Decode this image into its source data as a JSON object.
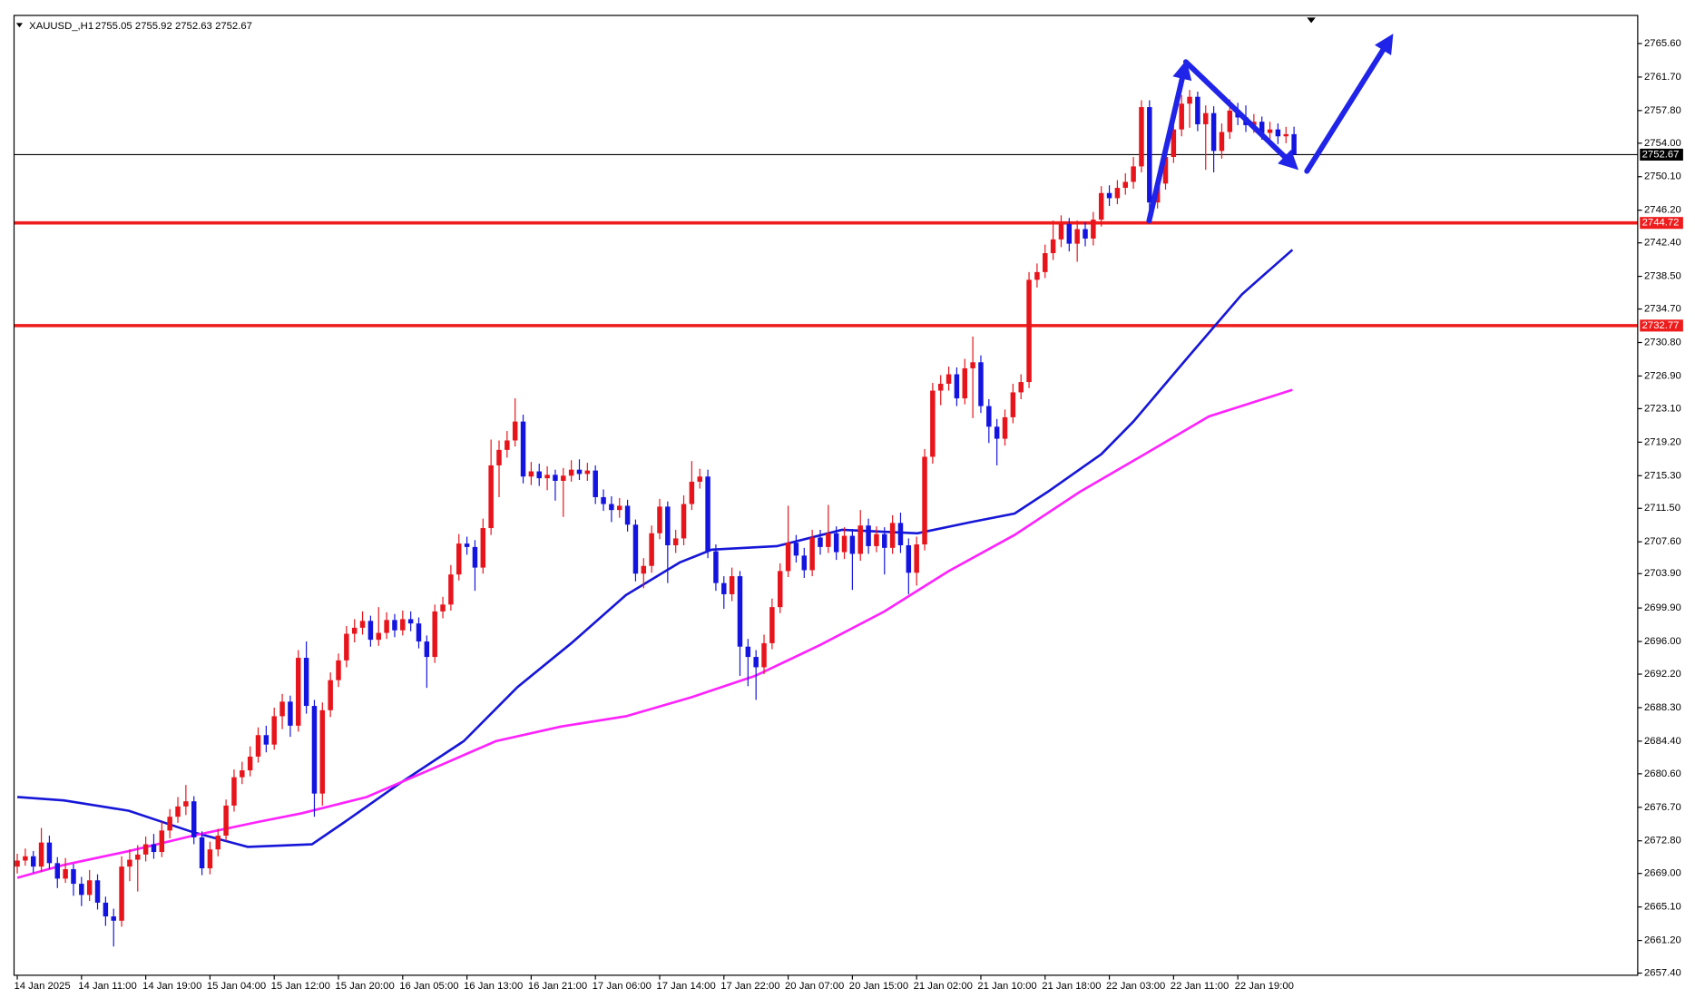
{
  "chart_data": {
    "type": "candlestick",
    "title": "XAUUSD_,H1",
    "color_up": "#e8141c",
    "color_down": "#1414e0",
    "xlim": [
      -0.4,
      201.8
    ],
    "xticks": [
      {
        "value": 0,
        "label": "14 Jan 2025"
      },
      {
        "value": 8,
        "label": "14 Jan 11:00"
      },
      {
        "value": 16,
        "label": "14 Jan 19:00"
      },
      {
        "value": 24,
        "label": "15 Jan 04:00"
      },
      {
        "value": 32,
        "label": "15 Jan 12:00"
      },
      {
        "value": 40,
        "label": "15 Jan 20:00"
      },
      {
        "value": 48,
        "label": "16 Jan 05:00"
      },
      {
        "value": 56,
        "label": "16 Jan 13:00"
      },
      {
        "value": 64,
        "label": "16 Jan 21:00"
      },
      {
        "value": 72,
        "label": "17 Jan 06:00"
      },
      {
        "value": 80,
        "label": "17 Jan 14:00"
      },
      {
        "value": 88,
        "label": "17 Jan 22:00"
      },
      {
        "value": 96,
        "label": "20 Jan 07:00"
      },
      {
        "value": 104,
        "label": "20 Jan 15:00"
      },
      {
        "value": 112,
        "label": "21 Jan 02:00"
      },
      {
        "value": 120,
        "label": "21 Jan 10:00"
      },
      {
        "value": 128,
        "label": "21 Jan 18:00"
      },
      {
        "value": 136,
        "label": "22 Jan 03:00"
      },
      {
        "value": 144,
        "label": "22 Jan 11:00"
      },
      {
        "value": 152,
        "label": "22 Jan 19:00"
      }
    ],
    "ylim": [
      2657.15,
      2768.87
    ],
    "yticks": [
      {
        "value": 2765.6,
        "label": "2765.60"
      },
      {
        "value": 2761.7,
        "label": "2761.70"
      },
      {
        "value": 2757.8,
        "label": "2757.80"
      },
      {
        "value": 2754,
        "label": "2754.00"
      },
      {
        "value": 2750.1,
        "label": "2750.10"
      },
      {
        "value": 2746.2,
        "label": "2746.20"
      },
      {
        "value": 2742.4,
        "label": "2742.40"
      },
      {
        "value": 2738.5,
        "label": "2738.50"
      },
      {
        "value": 2734.7,
        "label": "2734.70"
      },
      {
        "value": 2730.8,
        "label": "2730.80"
      },
      {
        "value": 2726.9,
        "label": "2726.90"
      },
      {
        "value": 2723.1,
        "label": "2723.10"
      },
      {
        "value": 2719.2,
        "label": "2719.20"
      },
      {
        "value": 2715.3,
        "label": "2715.30"
      },
      {
        "value": 2711.5,
        "label": "2711.50"
      },
      {
        "value": 2707.6,
        "label": "2707.60"
      },
      {
        "value": 2703.9,
        "label": "2703.90"
      },
      {
        "value": 2699.9,
        "label": "2699.90"
      },
      {
        "value": 2696,
        "label": "2696.00"
      },
      {
        "value": 2692.2,
        "label": "2692.20"
      },
      {
        "value": 2688.3,
        "label": "2688.30"
      },
      {
        "value": 2684.4,
        "label": "2684.40"
      },
      {
        "value": 2680.6,
        "label": "2680.60"
      },
      {
        "value": 2676.7,
        "label": "2676.70"
      },
      {
        "value": 2672.8,
        "label": "2672.80"
      },
      {
        "value": 2669,
        "label": "2669.00"
      },
      {
        "value": 2665.1,
        "label": "2665.10"
      },
      {
        "value": 2661.2,
        "label": "2661.20"
      },
      {
        "value": 2657.4,
        "label": "2657.40"
      }
    ],
    "grid": false,
    "candles": [
      [
        2669.8,
        2671.3,
        2669.0,
        2670.5
      ],
      [
        2670.5,
        2671.9,
        2669.9,
        2671.0
      ],
      [
        2671.0,
        2671.6,
        2669.1,
        2669.8
      ],
      [
        2669.8,
        2674.3,
        2669.2,
        2672.6
      ],
      [
        2672.6,
        2673.4,
        2669.5,
        2670.2
      ],
      [
        2670.2,
        2670.9,
        2667.3,
        2668.4
      ],
      [
        2668.4,
        2670.8,
        2667.9,
        2669.5
      ],
      [
        2669.5,
        2670.1,
        2666.4,
        2667.8
      ],
      [
        2667.8,
        2668.6,
        2665.2,
        2666.5
      ],
      [
        2666.5,
        2669.4,
        2665.8,
        2668.2
      ],
      [
        2668.2,
        2668.9,
        2664.8,
        2665.6
      ],
      [
        2665.6,
        2666.3,
        2662.9,
        2664.0
      ],
      [
        2664.0,
        2664.9,
        2660.5,
        2663.5
      ],
      [
        2663.5,
        2671.0,
        2662.8,
        2669.8
      ],
      [
        2669.8,
        2671.8,
        2668.1,
        2670.6
      ],
      [
        2670.6,
        2672.3,
        2666.9,
        2671.2
      ],
      [
        2671.2,
        2673.3,
        2670.4,
        2672.4
      ],
      [
        2672.4,
        2673.6,
        2670.7,
        2671.5
      ],
      [
        2671.5,
        2675.0,
        2670.9,
        2674.0
      ],
      [
        2674.0,
        2676.5,
        2673.1,
        2675.6
      ],
      [
        2675.6,
        2677.9,
        2674.9,
        2676.8
      ],
      [
        2676.8,
        2679.3,
        2675.8,
        2677.4
      ],
      [
        2677.4,
        2678.0,
        2672.4,
        2673.2
      ],
      [
        2673.2,
        2673.9,
        2668.8,
        2669.6
      ],
      [
        2669.6,
        2672.7,
        2668.9,
        2671.8
      ],
      [
        2671.8,
        2674.2,
        2671.0,
        2673.4
      ],
      [
        2673.4,
        2677.6,
        2672.8,
        2676.9
      ],
      [
        2676.9,
        2681.1,
        2676.2,
        2680.2
      ],
      [
        2680.2,
        2682.0,
        2679.4,
        2681.0
      ],
      [
        2681.0,
        2683.8,
        2680.3,
        2682.6
      ],
      [
        2682.6,
        2686.0,
        2681.9,
        2685.1
      ],
      [
        2685.1,
        2686.2,
        2683.1,
        2684.0
      ],
      [
        2684.0,
        2688.3,
        2683.4,
        2687.3
      ],
      [
        2687.3,
        2689.9,
        2685.8,
        2689.0
      ],
      [
        2689.0,
        2689.7,
        2684.9,
        2686.2
      ],
      [
        2686.2,
        2695.0,
        2685.5,
        2694.1
      ],
      [
        2694.1,
        2696.0,
        2687.6,
        2688.5
      ],
      [
        2688.5,
        2689.2,
        2675.6,
        2678.3
      ],
      [
        2678.3,
        2688.9,
        2676.9,
        2688.0
      ],
      [
        2688.0,
        2692.4,
        2687.2,
        2691.5
      ],
      [
        2691.5,
        2694.6,
        2690.7,
        2693.8
      ],
      [
        2693.8,
        2697.8,
        2693.0,
        2696.9
      ],
      [
        2696.9,
        2698.6,
        2695.9,
        2697.6
      ],
      [
        2697.6,
        2699.5,
        2696.8,
        2698.4
      ],
      [
        2698.4,
        2699.0,
        2695.4,
        2696.2
      ],
      [
        2696.2,
        2700.0,
        2695.5,
        2697.0
      ],
      [
        2697.0,
        2699.4,
        2696.3,
        2698.5
      ],
      [
        2698.5,
        2699.2,
        2696.5,
        2697.3
      ],
      [
        2697.3,
        2699.6,
        2696.7,
        2698.6
      ],
      [
        2698.6,
        2699.5,
        2697.2,
        2698.1
      ],
      [
        2698.1,
        2698.8,
        2695.2,
        2696.0
      ],
      [
        2696.0,
        2696.7,
        2690.6,
        2694.2
      ],
      [
        2694.2,
        2700.3,
        2693.5,
        2699.5
      ],
      [
        2699.5,
        2701.2,
        2698.7,
        2700.3
      ],
      [
        2700.3,
        2704.9,
        2699.6,
        2703.8
      ],
      [
        2703.8,
        2708.5,
        2703.1,
        2707.4
      ],
      [
        2707.4,
        2708.2,
        2706.1,
        2707.0
      ],
      [
        2707.0,
        2707.8,
        2701.9,
        2704.6
      ],
      [
        2704.6,
        2710.3,
        2703.9,
        2709.2
      ],
      [
        2709.2,
        2719.5,
        2708.4,
        2716.5
      ],
      [
        2716.5,
        2719.4,
        2712.8,
        2718.3
      ],
      [
        2718.3,
        2720.5,
        2717.4,
        2719.4
      ],
      [
        2719.4,
        2724.3,
        2718.7,
        2721.6
      ],
      [
        2721.6,
        2722.4,
        2714.4,
        2715.2
      ],
      [
        2715.2,
        2716.9,
        2714.2,
        2715.8
      ],
      [
        2715.8,
        2716.7,
        2714.1,
        2715.0
      ],
      [
        2715.0,
        2716.4,
        2713.6,
        2715.4
      ],
      [
        2715.4,
        2716.0,
        2712.4,
        2714.7
      ],
      [
        2714.7,
        2716.2,
        2710.5,
        2715.3
      ],
      [
        2715.3,
        2717.1,
        2714.6,
        2716.0
      ],
      [
        2716.0,
        2717.2,
        2714.8,
        2715.5
      ],
      [
        2715.5,
        2716.8,
        2714.7,
        2715.9
      ],
      [
        2715.9,
        2716.5,
        2712.0,
        2712.8
      ],
      [
        2712.8,
        2713.7,
        2711.2,
        2712.0
      ],
      [
        2712.0,
        2712.9,
        2709.9,
        2711.3
      ],
      [
        2711.3,
        2712.7,
        2710.4,
        2711.8
      ],
      [
        2711.8,
        2712.5,
        2708.8,
        2709.6
      ],
      [
        2709.6,
        2710.2,
        2703.0,
        2703.9
      ],
      [
        2703.9,
        2705.7,
        2702.2,
        2704.8
      ],
      [
        2704.8,
        2709.5,
        2704.0,
        2708.6
      ],
      [
        2708.6,
        2712.6,
        2707.9,
        2711.7
      ],
      [
        2711.7,
        2712.3,
        2702.8,
        2707.2
      ],
      [
        2707.2,
        2709.0,
        2706.3,
        2708.0
      ],
      [
        2708.0,
        2713.0,
        2707.2,
        2712.0
      ],
      [
        2712.0,
        2717.0,
        2711.3,
        2714.6
      ],
      [
        2714.6,
        2716.1,
        2713.8,
        2715.2
      ],
      [
        2715.2,
        2716.0,
        2705.7,
        2706.5
      ],
      [
        2706.5,
        2707.3,
        2701.9,
        2702.8
      ],
      [
        2702.8,
        2703.6,
        2699.8,
        2701.5
      ],
      [
        2701.5,
        2704.6,
        2700.7,
        2703.6
      ],
      [
        2703.6,
        2704.2,
        2692.0,
        2695.4
      ],
      [
        2695.4,
        2696.3,
        2690.8,
        2694.2
      ],
      [
        2694.2,
        2695.0,
        2689.2,
        2693.0
      ],
      [
        2693.0,
        2696.8,
        2692.2,
        2695.8
      ],
      [
        2695.8,
        2701.0,
        2695.1,
        2700.0
      ],
      [
        2700.0,
        2705.1,
        2699.3,
        2704.2
      ],
      [
        2704.2,
        2711.8,
        2703.5,
        2707.5
      ],
      [
        2707.5,
        2708.4,
        2705.2,
        2706.0
      ],
      [
        2706.0,
        2706.9,
        2703.4,
        2704.3
      ],
      [
        2704.3,
        2709.0,
        2703.6,
        2708.1
      ],
      [
        2708.1,
        2709.0,
        2706.1,
        2707.0
      ],
      [
        2707.0,
        2711.9,
        2706.3,
        2708.6
      ],
      [
        2708.6,
        2709.4,
        2705.5,
        2706.4
      ],
      [
        2706.4,
        2709.3,
        2705.6,
        2708.3
      ],
      [
        2708.3,
        2709.1,
        2702.0,
        2706.2
      ],
      [
        2706.2,
        2711.3,
        2705.4,
        2709.5
      ],
      [
        2709.5,
        2710.3,
        2706.2,
        2707.1
      ],
      [
        2707.1,
        2709.4,
        2706.4,
        2708.5
      ],
      [
        2708.5,
        2709.3,
        2703.8,
        2706.9
      ],
      [
        2706.9,
        2710.7,
        2706.2,
        2709.8
      ],
      [
        2709.8,
        2711.0,
        2706.3,
        2707.2
      ],
      [
        2707.2,
        2708.0,
        2701.5,
        2704.0
      ],
      [
        2704.0,
        2708.2,
        2702.5,
        2707.3
      ],
      [
        2707.3,
        2718.4,
        2706.6,
        2717.5
      ],
      [
        2717.5,
        2726.1,
        2716.7,
        2725.2
      ],
      [
        2725.2,
        2727.0,
        2723.5,
        2726.0
      ],
      [
        2726.0,
        2728.0,
        2725.2,
        2727.1
      ],
      [
        2727.1,
        2727.9,
        2723.4,
        2724.3
      ],
      [
        2724.3,
        2728.9,
        2723.6,
        2727.8
      ],
      [
        2727.8,
        2731.5,
        2722.0,
        2728.5
      ],
      [
        2728.5,
        2729.3,
        2722.6,
        2723.4
      ],
      [
        2723.4,
        2724.2,
        2719.1,
        2721.0
      ],
      [
        2721.0,
        2721.9,
        2716.5,
        2719.6
      ],
      [
        2719.6,
        2723.0,
        2718.8,
        2722.1
      ],
      [
        2722.1,
        2726.0,
        2721.4,
        2725.0
      ],
      [
        2725.0,
        2727.1,
        2724.2,
        2726.2
      ],
      [
        2726.2,
        2739.0,
        2725.5,
        2738.1
      ],
      [
        2738.1,
        2740.0,
        2737.2,
        2739.0
      ],
      [
        2739.0,
        2742.2,
        2738.3,
        2741.2
      ],
      [
        2741.2,
        2745.0,
        2740.4,
        2742.8
      ],
      [
        2742.8,
        2745.6,
        2741.9,
        2744.6
      ],
      [
        2744.6,
        2745.3,
        2741.4,
        2742.3
      ],
      [
        2742.3,
        2745.0,
        2740.2,
        2744.0
      ],
      [
        2744.0,
        2744.8,
        2742.0,
        2742.9
      ],
      [
        2742.9,
        2746.0,
        2742.1,
        2745.1
      ],
      [
        2745.1,
        2749.0,
        2744.3,
        2748.2
      ],
      [
        2748.2,
        2749.1,
        2746.7,
        2747.6
      ],
      [
        2747.6,
        2749.7,
        2746.9,
        2748.8
      ],
      [
        2748.8,
        2750.5,
        2748.0,
        2749.5
      ],
      [
        2749.5,
        2752.4,
        2748.7,
        2751.3
      ],
      [
        2751.3,
        2759.0,
        2750.6,
        2758.2
      ],
      [
        2758.2,
        2759.0,
        2746.2,
        2747.1
      ],
      [
        2747.1,
        2750.3,
        2746.4,
        2749.3
      ],
      [
        2749.3,
        2753.4,
        2748.6,
        2752.4
      ],
      [
        2752.4,
        2756.6,
        2751.7,
        2755.6
      ],
      [
        2755.6,
        2759.6,
        2754.8,
        2758.6
      ],
      [
        2758.6,
        2760.2,
        2755.8,
        2759.4
      ],
      [
        2759.4,
        2760.0,
        2755.4,
        2756.2
      ],
      [
        2756.2,
        2758.4,
        2750.9,
        2757.5
      ],
      [
        2757.5,
        2758.3,
        2750.6,
        2753.1
      ],
      [
        2753.1,
        2756.3,
        2752.2,
        2755.3
      ],
      [
        2755.3,
        2759.1,
        2754.5,
        2757.8
      ],
      [
        2757.8,
        2758.7,
        2756.1,
        2757.0
      ],
      [
        2757.0,
        2758.4,
        2755.3,
        2756.1
      ],
      [
        2756.1,
        2757.4,
        2755.2,
        2756.5
      ],
      [
        2756.5,
        2757.1,
        2754.4,
        2755.2
      ],
      [
        2755.2,
        2756.5,
        2754.5,
        2755.6
      ],
      [
        2755.6,
        2756.3,
        2753.9,
        2754.8
      ],
      [
        2754.8,
        2755.9,
        2754.0,
        2755.05
      ],
      [
        2755.05,
        2755.92,
        2752.63,
        2752.67
      ]
    ],
    "moving_averages": [
      {
        "color": "#1616d8",
        "x": [
          0,
          5.8,
          13.9,
          21.9,
          28.7,
          36.7,
          40.8,
          47.5,
          55.6,
          62.3,
          69,
          75.8,
          82.5,
          86.5,
          94.6,
          102.7,
          112.1,
          118.8,
          124.2,
          128.3,
          135,
          139,
          145.8,
          152.5,
          158.8
        ],
        "values": [
          2677.9,
          2677.5,
          2676.3,
          2673.8,
          2672.1,
          2672.4,
          2675,
          2679.4,
          2684.4,
          2690.7,
          2695.8,
          2701.4,
          2705.2,
          2706.7,
          2707.1,
          2709,
          2708.6,
          2709.9,
          2710.9,
          2713.4,
          2717.8,
          2721.6,
          2729.1,
          2736.4,
          2741.6
        ]
      },
      {
        "color": "#ff22ff",
        "x": [
          0,
          5.8,
          13.9,
          21.9,
          30,
          35.4,
          43.5,
          51.5,
          59.6,
          67.7,
          75.8,
          83.9,
          91.9,
          100,
          108,
          116,
          124.2,
          132.3,
          140.4,
          148.4,
          158.8
        ],
        "values": [
          2668.5,
          2670,
          2671.6,
          2673.4,
          2675,
          2676,
          2677.9,
          2681.1,
          2684.4,
          2686.1,
          2687.3,
          2689.5,
          2692,
          2695.6,
          2699.5,
          2704.2,
          2708.4,
          2713.4,
          2717.8,
          2722.2,
          2725.3
        ]
      }
    ],
    "horizontal_lines": [
      {
        "value": 2752.67,
        "color": "#000000",
        "width": 1,
        "label_color": "#000000"
      },
      {
        "value": 2744.72,
        "color": "#ee1c1c",
        "width": 3,
        "label_color": "#ee1c1c"
      },
      {
        "value": 2732.77,
        "color": "#ee1c1c",
        "width": 3,
        "label_color": "#ee1c1c"
      }
    ]
  }
}
